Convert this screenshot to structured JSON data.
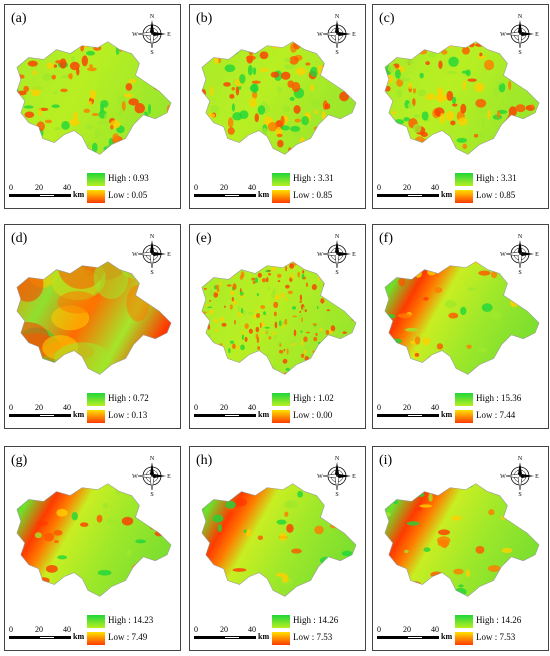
{
  "panels": [
    {
      "label": "(a)",
      "high": "High : 0.93",
      "low": "Low : 0.05",
      "pattern": "noisy"
    },
    {
      "label": "(b)",
      "high": "High : 3.31",
      "low": "Low : 0.85",
      "pattern": "noisy"
    },
    {
      "label": "(c)",
      "high": "High : 3.31",
      "low": "Low : 0.85",
      "pattern": "noisy"
    },
    {
      "label": "(d)",
      "high": "High : 0.72",
      "low": "Low : 0.13",
      "pattern": "smooth"
    },
    {
      "label": "(e)",
      "high": "High : 1.02",
      "low": "Low : 0.00",
      "pattern": "speckle"
    },
    {
      "label": "(f)",
      "high": "High : 15.36",
      "low": "Low : 7.44",
      "pattern": "band"
    },
    {
      "label": "(g)",
      "high": "High : 14.23",
      "low": "Low : 7.49",
      "pattern": "band"
    },
    {
      "label": "(h)",
      "high": "High : 14.26",
      "low": "Low : 7.53",
      "pattern": "band"
    },
    {
      "label": "(i)",
      "high": "High : 14.26",
      "low": "Low : 7.53",
      "pattern": "band"
    }
  ],
  "scale_bar": {
    "t0": "0",
    "t20": "20",
    "t40": "40",
    "unit": "km"
  },
  "compass": {
    "n": "N",
    "s": "S",
    "e": "E",
    "w": "W",
    "icon": "north-arrow-compass-icon"
  },
  "colors": {
    "high": "#1fd63a",
    "mid": "#b8ef22",
    "yellow": "#ffe100",
    "low": "#ff3a00"
  }
}
